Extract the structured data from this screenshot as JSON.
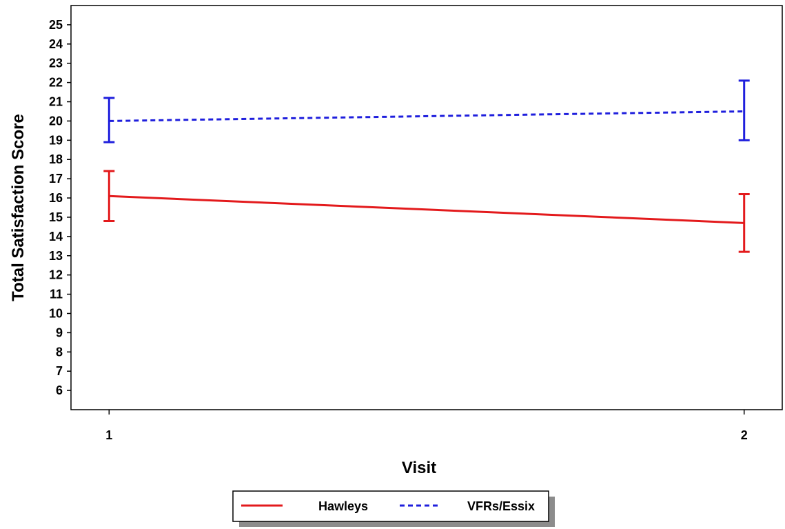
{
  "chart_data": {
    "type": "line",
    "title": "",
    "xlabel": "Visit",
    "ylabel": "Total Satisfaction Score",
    "x": [
      1,
      2
    ],
    "x_tick_labels": [
      "1",
      "2"
    ],
    "y_ticks": [
      6,
      7,
      8,
      9,
      10,
      11,
      12,
      13,
      14,
      15,
      16,
      17,
      18,
      19,
      20,
      21,
      22,
      23,
      24,
      25
    ],
    "xlim": [
      0.94,
      2.06
    ],
    "ylim": [
      5,
      26
    ],
    "grid": false,
    "legend_placement": "bottom",
    "series": [
      {
        "name": "Hawleys",
        "color": "#e31a1c",
        "line_style": "solid",
        "values": [
          16.1,
          14.7
        ],
        "error_low": [
          14.8,
          13.2
        ],
        "error_high": [
          17.4,
          16.2
        ]
      },
      {
        "name": "VFRs/Essix",
        "color": "#1f1fdd",
        "line_style": "dashed",
        "values": [
          20.0,
          20.5
        ],
        "error_low": [
          18.9,
          19.0
        ],
        "error_high": [
          21.2,
          22.1
        ]
      }
    ]
  }
}
